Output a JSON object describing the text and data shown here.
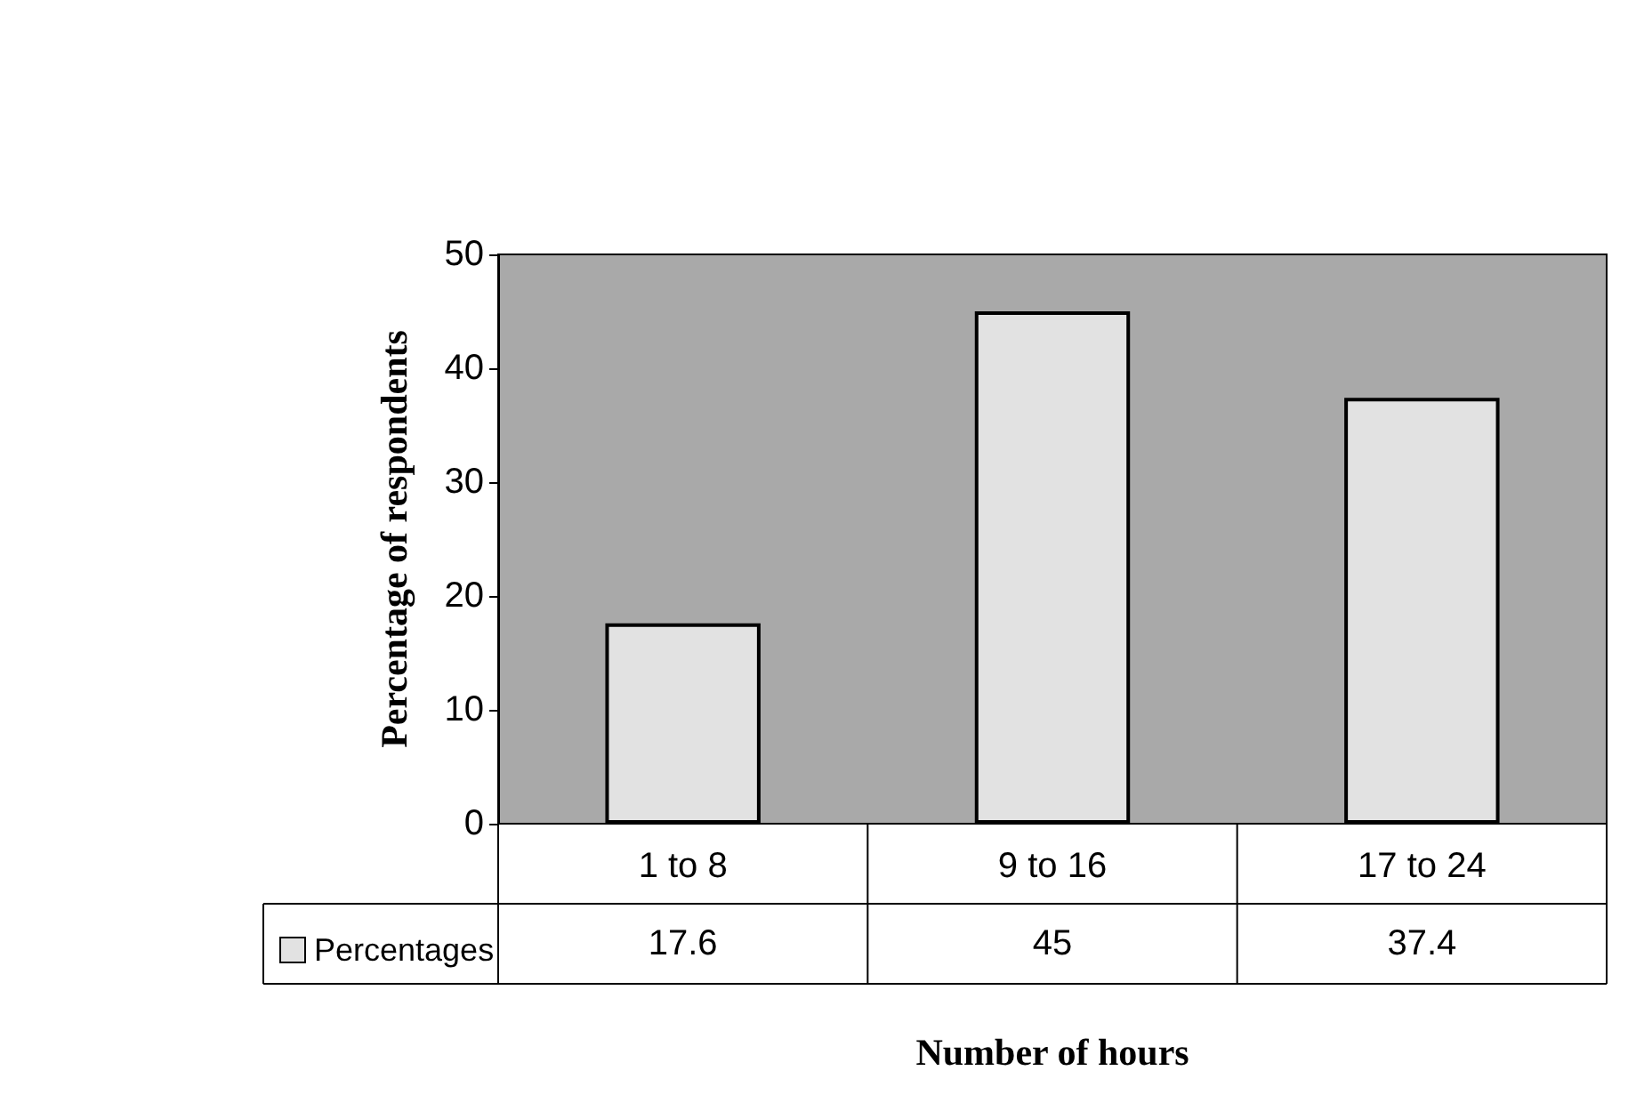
{
  "chart_data": {
    "type": "bar",
    "xlabel": "Number of hours",
    "ylabel": "Percentage of respondents",
    "categories": [
      "1 to 8",
      "9 to 16",
      "17 to 24"
    ],
    "series": [
      {
        "name": "Percentages",
        "color": "#e2e2e2",
        "values": [
          17.6,
          45,
          37.4
        ]
      }
    ],
    "ylim": [
      0,
      50
    ],
    "yticks": [
      0,
      10,
      20,
      30,
      40,
      50
    ],
    "grid": false,
    "legend": "bottom left",
    "data_labels": true
  }
}
